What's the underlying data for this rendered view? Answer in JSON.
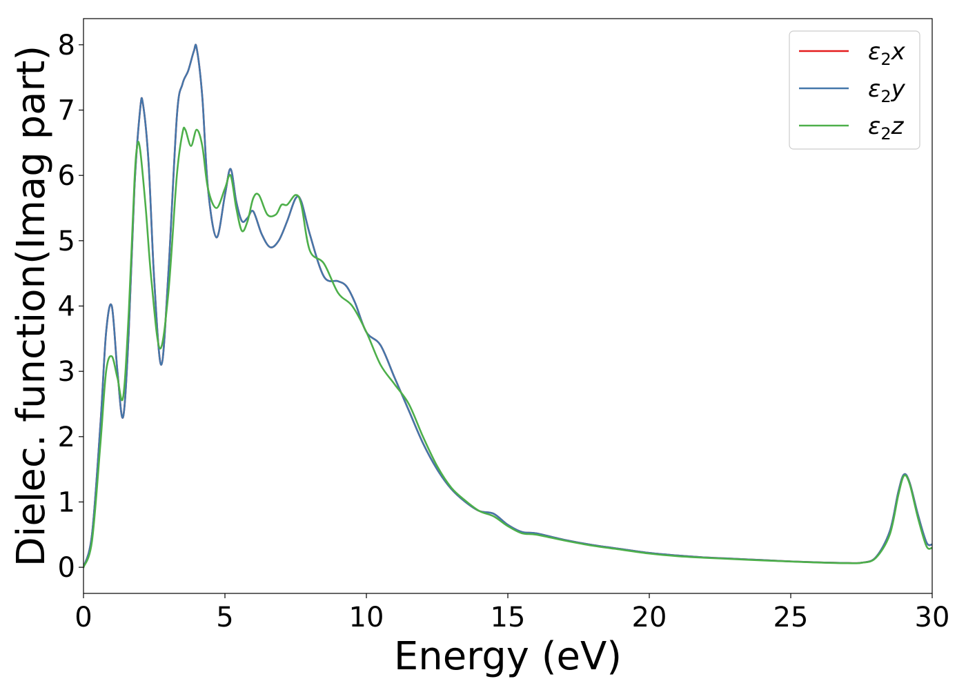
{
  "chart_data": {
    "type": "line",
    "title": "",
    "xlabel": "Energy (eV)",
    "ylabel": "Dielec. function(Imag part)",
    "xlim": [
      0,
      30
    ],
    "ylim": [
      -0.4,
      8.4
    ],
    "xticks": [
      0,
      5,
      10,
      15,
      20,
      25,
      30
    ],
    "yticks": [
      0,
      1,
      2,
      3,
      4,
      5,
      6,
      7,
      8
    ],
    "grid": false,
    "legend_position": "top-right",
    "series": [
      {
        "name": "ε2x",
        "legend_base": "ε",
        "legend_sub": "2",
        "legend_var": "x",
        "color": "#e41a1c",
        "x": [
          0,
          0.3,
          0.6,
          0.8,
          1.0,
          1.2,
          1.4,
          1.6,
          1.8,
          2.0,
          2.1,
          2.3,
          2.5,
          2.75,
          3.0,
          3.3,
          3.5,
          3.7,
          3.9,
          4.0,
          4.2,
          4.4,
          4.7,
          5.0,
          5.2,
          5.4,
          5.6,
          5.8,
          6.0,
          6.3,
          6.6,
          6.9,
          7.2,
          7.5,
          7.7,
          8.0,
          8.5,
          9.0,
          9.3,
          9.6,
          10.0,
          10.5,
          11.0,
          11.5,
          12.0,
          12.5,
          13.0,
          13.5,
          14.0,
          14.5,
          15.0,
          15.5,
          16.0,
          17.0,
          18.0,
          19.0,
          20.0,
          21.0,
          22.0,
          23.0,
          24.0,
          25.0,
          26.0,
          27.0,
          27.5,
          28.0,
          28.5,
          28.8,
          29.0,
          29.2,
          29.5,
          29.8,
          30.0
        ],
        "y": [
          0,
          0.5,
          2.2,
          3.6,
          4.0,
          3.0,
          2.3,
          3.6,
          5.8,
          7.0,
          7.1,
          6.2,
          4.4,
          3.1,
          4.5,
          6.9,
          7.4,
          7.6,
          7.9,
          7.95,
          7.2,
          5.8,
          5.05,
          5.7,
          6.1,
          5.6,
          5.3,
          5.35,
          5.45,
          5.1,
          4.9,
          5.0,
          5.3,
          5.65,
          5.6,
          5.1,
          4.45,
          4.38,
          4.3,
          4.05,
          3.6,
          3.4,
          2.9,
          2.4,
          1.9,
          1.5,
          1.2,
          1.0,
          0.86,
          0.82,
          0.65,
          0.54,
          0.52,
          0.42,
          0.34,
          0.28,
          0.22,
          0.18,
          0.15,
          0.13,
          0.11,
          0.09,
          0.075,
          0.065,
          0.07,
          0.15,
          0.55,
          1.15,
          1.42,
          1.3,
          0.8,
          0.38,
          0.35
        ]
      },
      {
        "name": "ε2y",
        "legend_base": "ε",
        "legend_sub": "2",
        "legend_var": "y",
        "color": "#4477aa",
        "x": [
          0,
          0.3,
          0.6,
          0.8,
          1.0,
          1.2,
          1.4,
          1.6,
          1.8,
          2.0,
          2.1,
          2.3,
          2.5,
          2.75,
          3.0,
          3.3,
          3.5,
          3.7,
          3.9,
          4.0,
          4.2,
          4.4,
          4.7,
          5.0,
          5.2,
          5.4,
          5.6,
          5.8,
          6.0,
          6.3,
          6.6,
          6.9,
          7.2,
          7.5,
          7.7,
          8.0,
          8.5,
          9.0,
          9.3,
          9.6,
          10.0,
          10.5,
          11.0,
          11.5,
          12.0,
          12.5,
          13.0,
          13.5,
          14.0,
          14.5,
          15.0,
          15.5,
          16.0,
          17.0,
          18.0,
          19.0,
          20.0,
          21.0,
          22.0,
          23.0,
          24.0,
          25.0,
          26.0,
          27.0,
          27.5,
          28.0,
          28.5,
          28.8,
          29.0,
          29.2,
          29.5,
          29.8,
          30.0
        ],
        "y": [
          0,
          0.5,
          2.2,
          3.6,
          4.0,
          3.0,
          2.3,
          3.6,
          5.8,
          7.0,
          7.1,
          6.2,
          4.4,
          3.1,
          4.5,
          6.9,
          7.4,
          7.6,
          7.9,
          7.95,
          7.2,
          5.8,
          5.05,
          5.7,
          6.1,
          5.6,
          5.3,
          5.35,
          5.45,
          5.1,
          4.9,
          5.0,
          5.3,
          5.65,
          5.6,
          5.1,
          4.45,
          4.38,
          4.3,
          4.05,
          3.6,
          3.4,
          2.9,
          2.4,
          1.9,
          1.5,
          1.2,
          1.0,
          0.86,
          0.82,
          0.65,
          0.54,
          0.52,
          0.42,
          0.34,
          0.28,
          0.22,
          0.18,
          0.15,
          0.13,
          0.11,
          0.09,
          0.075,
          0.065,
          0.07,
          0.15,
          0.55,
          1.15,
          1.42,
          1.3,
          0.8,
          0.38,
          0.35
        ]
      },
      {
        "name": "ε2z",
        "legend_base": "ε",
        "legend_sub": "2",
        "legend_var": "z",
        "color": "#4daf4a",
        "x": [
          0,
          0.3,
          0.6,
          0.8,
          1.0,
          1.2,
          1.4,
          1.6,
          1.8,
          1.9,
          2.0,
          2.2,
          2.4,
          2.7,
          3.0,
          3.3,
          3.5,
          3.6,
          3.8,
          4.0,
          4.2,
          4.4,
          4.7,
          5.0,
          5.2,
          5.4,
          5.6,
          5.8,
          6.0,
          6.2,
          6.5,
          6.8,
          7.0,
          7.2,
          7.5,
          7.7,
          8.0,
          8.5,
          9.0,
          9.5,
          10.0,
          10.5,
          11.0,
          11.5,
          12.0,
          12.5,
          13.0,
          13.5,
          14.0,
          14.5,
          15.0,
          15.5,
          16.0,
          17.0,
          18.0,
          19.0,
          20.0,
          21.0,
          22.0,
          23.0,
          24.0,
          25.0,
          26.0,
          27.0,
          27.5,
          28.0,
          28.5,
          28.8,
          29.0,
          29.2,
          29.5,
          29.8,
          30.0
        ],
        "y": [
          0,
          0.4,
          1.9,
          3.0,
          3.23,
          2.9,
          2.6,
          3.9,
          5.9,
          6.45,
          6.4,
          5.5,
          4.4,
          3.35,
          4.2,
          6.0,
          6.65,
          6.7,
          6.45,
          6.7,
          6.45,
          5.8,
          5.5,
          5.8,
          6.0,
          5.5,
          5.15,
          5.3,
          5.65,
          5.7,
          5.4,
          5.4,
          5.55,
          5.55,
          5.7,
          5.55,
          4.85,
          4.65,
          4.2,
          4.0,
          3.6,
          3.1,
          2.8,
          2.5,
          2.0,
          1.55,
          1.22,
          1.02,
          0.86,
          0.78,
          0.63,
          0.52,
          0.5,
          0.41,
          0.33,
          0.27,
          0.21,
          0.17,
          0.145,
          0.125,
          0.105,
          0.088,
          0.072,
          0.063,
          0.068,
          0.14,
          0.5,
          1.1,
          1.4,
          1.28,
          0.75,
          0.32,
          0.3
        ]
      }
    ]
  }
}
